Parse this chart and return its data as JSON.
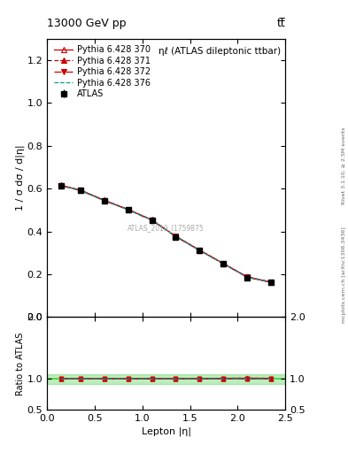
{
  "title_top_left": "13000 GeV pp",
  "title_top_right": "tt̅",
  "plot_title": "ηℓ (ATLAS dileptonic ttbar)",
  "watermark": "ATLAS_2019_I1759875",
  "right_label_top": "Rivet 3.1.10, ≥ 2.5M events",
  "right_label_bot": "mcplots.cern.ch [arXiv:1306.3436]",
  "xlabel": "Lepton |η|",
  "ylabel": "1 / σ dσ / d|η|",
  "ylabel_ratio": "Ratio to ATLAS",
  "xlim": [
    0.0,
    2.5
  ],
  "ylim_main": [
    0.0,
    1.3
  ],
  "ylim_ratio": [
    0.5,
    2.0
  ],
  "ratio_yticks": [
    0.5,
    1.0,
    2.0
  ],
  "atlas_x": [
    0.15,
    0.35,
    0.6,
    0.85,
    1.1,
    1.35,
    1.6,
    1.85,
    2.1,
    2.35
  ],
  "atlas_y": [
    0.612,
    0.59,
    0.543,
    0.5,
    0.45,
    0.375,
    0.31,
    0.248,
    0.185,
    0.162
  ],
  "atlas_xerr": [
    0.1,
    0.1,
    0.1,
    0.1,
    0.1,
    0.1,
    0.1,
    0.1,
    0.1,
    0.1
  ],
  "atlas_yerr": [
    0.006,
    0.006,
    0.006,
    0.006,
    0.006,
    0.006,
    0.006,
    0.006,
    0.006,
    0.006
  ],
  "lines": [
    {
      "label": "Pythia 6.428 370",
      "color": "#cc0000",
      "linestyle": "-",
      "marker": "^",
      "markerfill": "none",
      "x": [
        0.15,
        0.35,
        0.6,
        0.85,
        1.1,
        1.35,
        1.6,
        1.85,
        2.1,
        2.35
      ],
      "y": [
        0.614,
        0.592,
        0.545,
        0.502,
        0.453,
        0.377,
        0.312,
        0.25,
        0.187,
        0.163
      ]
    },
    {
      "label": "Pythia 6.428 371",
      "color": "#cc0000",
      "linestyle": "--",
      "marker": "^",
      "markerfill": "full",
      "x": [
        0.15,
        0.35,
        0.6,
        0.85,
        1.1,
        1.35,
        1.6,
        1.85,
        2.1,
        2.35
      ],
      "y": [
        0.615,
        0.593,
        0.546,
        0.503,
        0.454,
        0.378,
        0.313,
        0.251,
        0.188,
        0.164
      ]
    },
    {
      "label": "Pythia 6.428 372",
      "color": "#cc0000",
      "linestyle": "-.",
      "marker": "v",
      "markerfill": "full",
      "x": [
        0.15,
        0.35,
        0.6,
        0.85,
        1.1,
        1.35,
        1.6,
        1.85,
        2.1,
        2.35
      ],
      "y": [
        0.613,
        0.591,
        0.544,
        0.501,
        0.452,
        0.376,
        0.311,
        0.249,
        0.186,
        0.162
      ]
    },
    {
      "label": "Pythia 6.428 376",
      "color": "#009999",
      "linestyle": "--",
      "marker": "",
      "markerfill": "none",
      "x": [
        0.15,
        0.35,
        0.6,
        0.85,
        1.1,
        1.35,
        1.6,
        1.85,
        2.1,
        2.35
      ],
      "y": [
        0.613,
        0.591,
        0.544,
        0.501,
        0.452,
        0.376,
        0.311,
        0.249,
        0.186,
        0.162
      ]
    }
  ],
  "ratio_band_color": "#44cc44",
  "ratio_band_alpha": 0.35,
  "background_color": "#ffffff"
}
